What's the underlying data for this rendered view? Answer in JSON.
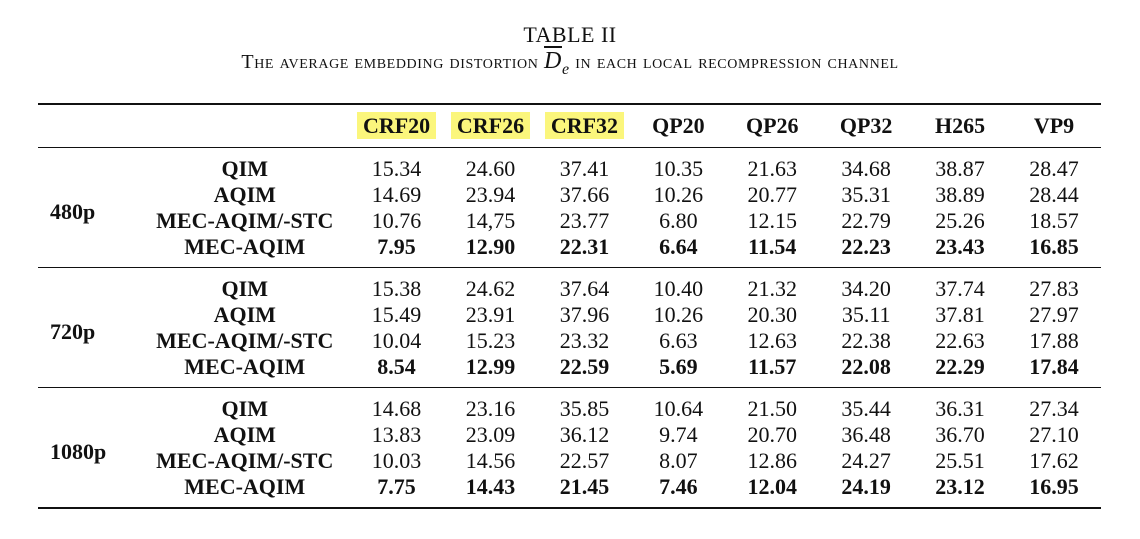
{
  "caption": {
    "label": "TABLE II",
    "title_before": "The average embedding distortion ",
    "symbol": "D",
    "symbol_sub": "e",
    "title_after": " in each local recompression channel"
  },
  "table": {
    "highlight_color": "#fbf67c",
    "columns": [
      "CRF20",
      "CRF26",
      "CRF32",
      "QP20",
      "QP26",
      "QP32",
      "H265",
      "VP9"
    ],
    "highlighted_columns": [
      "CRF20",
      "CRF26",
      "CRF32"
    ],
    "groups": [
      {
        "resolution": "480p",
        "rows": [
          {
            "method": "QIM",
            "values": [
              "15.34",
              "24.60",
              "37.41",
              "10.35",
              "21.63",
              "34.68",
              "38.87",
              "28.47"
            ],
            "bold": false
          },
          {
            "method": "AQIM",
            "values": [
              "14.69",
              "23.94",
              "37.66",
              "10.26",
              "20.77",
              "35.31",
              "38.89",
              "28.44"
            ],
            "bold": false
          },
          {
            "method": "MEC-AQIM/-STC",
            "values": [
              "10.76",
              "14,75",
              "23.77",
              "6.80",
              "12.15",
              "22.79",
              "25.26",
              "18.57"
            ],
            "bold": false
          },
          {
            "method": "MEC-AQIM",
            "values": [
              "7.95",
              "12.90",
              "22.31",
              "6.64",
              "11.54",
              "22.23",
              "23.43",
              "16.85"
            ],
            "bold": true
          }
        ]
      },
      {
        "resolution": "720p",
        "rows": [
          {
            "method": "QIM",
            "values": [
              "15.38",
              "24.62",
              "37.64",
              "10.40",
              "21.32",
              "34.20",
              "37.74",
              "27.83"
            ],
            "bold": false
          },
          {
            "method": "AQIM",
            "values": [
              "15.49",
              "23.91",
              "37.96",
              "10.26",
              "20.30",
              "35.11",
              "37.81",
              "27.97"
            ],
            "bold": false
          },
          {
            "method": "MEC-AQIM/-STC",
            "values": [
              "10.04",
              "15.23",
              "23.32",
              "6.63",
              "12.63",
              "22.38",
              "22.63",
              "17.88"
            ],
            "bold": false
          },
          {
            "method": "MEC-AQIM",
            "values": [
              "8.54",
              "12.99",
              "22.59",
              "5.69",
              "11.57",
              "22.08",
              "22.29",
              "17.84"
            ],
            "bold": true
          }
        ]
      },
      {
        "resolution": "1080p",
        "rows": [
          {
            "method": "QIM",
            "values": [
              "14.68",
              "23.16",
              "35.85",
              "10.64",
              "21.50",
              "35.44",
              "36.31",
              "27.34"
            ],
            "bold": false
          },
          {
            "method": "AQIM",
            "values": [
              "13.83",
              "23.09",
              "36.12",
              "9.74",
              "20.70",
              "36.48",
              "36.70",
              "27.10"
            ],
            "bold": false
          },
          {
            "method": "MEC-AQIM/-STC",
            "values": [
              "10.03",
              "14.56",
              "22.57",
              "8.07",
              "12.86",
              "24.27",
              "25.51",
              "17.62"
            ],
            "bold": false
          },
          {
            "method": "MEC-AQIM",
            "values": [
              "7.75",
              "14.43",
              "21.45",
              "7.46",
              "12.04",
              "24.19",
              "23.12",
              "16.95"
            ],
            "bold": true
          }
        ]
      }
    ]
  }
}
